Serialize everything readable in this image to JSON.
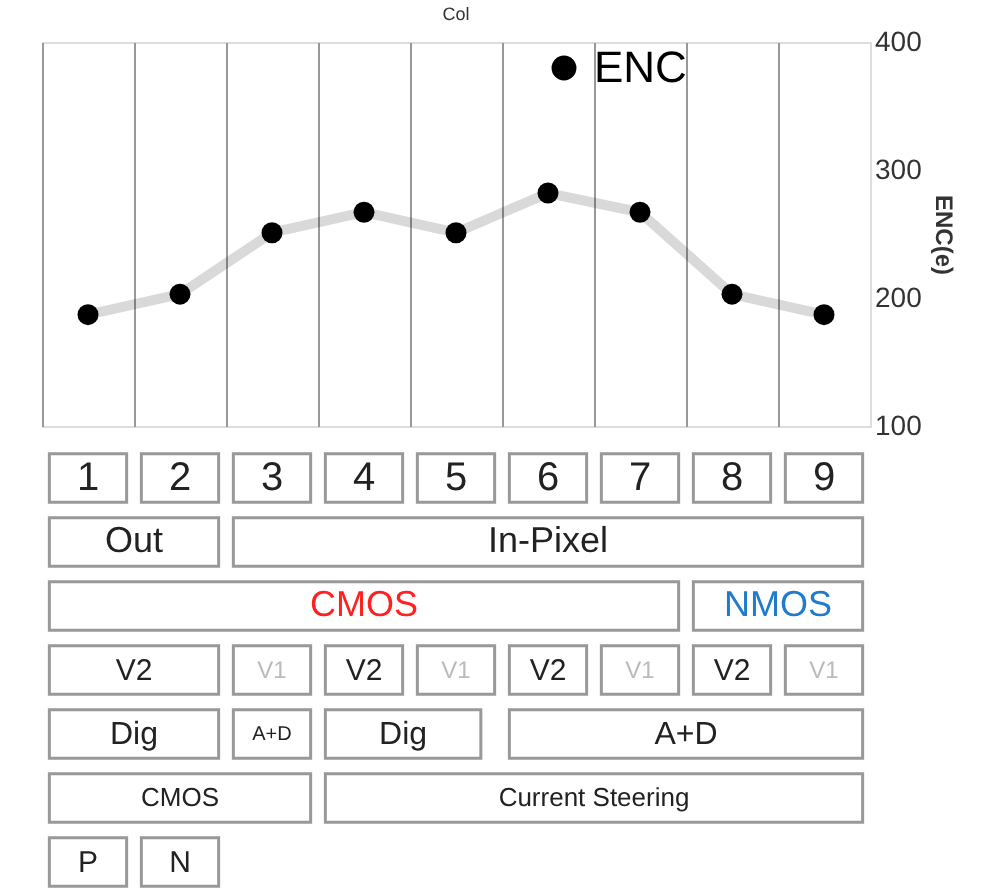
{
  "chart_data": {
    "type": "line",
    "title": "Col",
    "ylabel": "ENC(e)",
    "categories": [
      "1",
      "2",
      "3",
      "4",
      "5",
      "6",
      "7",
      "8",
      "9"
    ],
    "series": [
      {
        "name": "ENC",
        "color": "#000000",
        "values": [
          187,
          203,
          251,
          267,
          251,
          282,
          267,
          203,
          187
        ]
      }
    ],
    "ylim": [
      100,
      400
    ],
    "yticks": [
      100,
      200,
      300,
      400
    ],
    "grid": "x",
    "legend": "top",
    "marker": "circle",
    "line_style": "solid",
    "annotations": [
      "Out",
      "In-Pixel",
      "CMOS",
      "NMOS",
      "V2",
      "V1",
      "V2",
      "V1",
      "V2",
      "V1",
      "V2",
      "V1",
      "Dig",
      "A+D",
      "Dig",
      "A+D",
      "CMOS",
      "Current Steering",
      "P",
      "N"
    ]
  }
}
